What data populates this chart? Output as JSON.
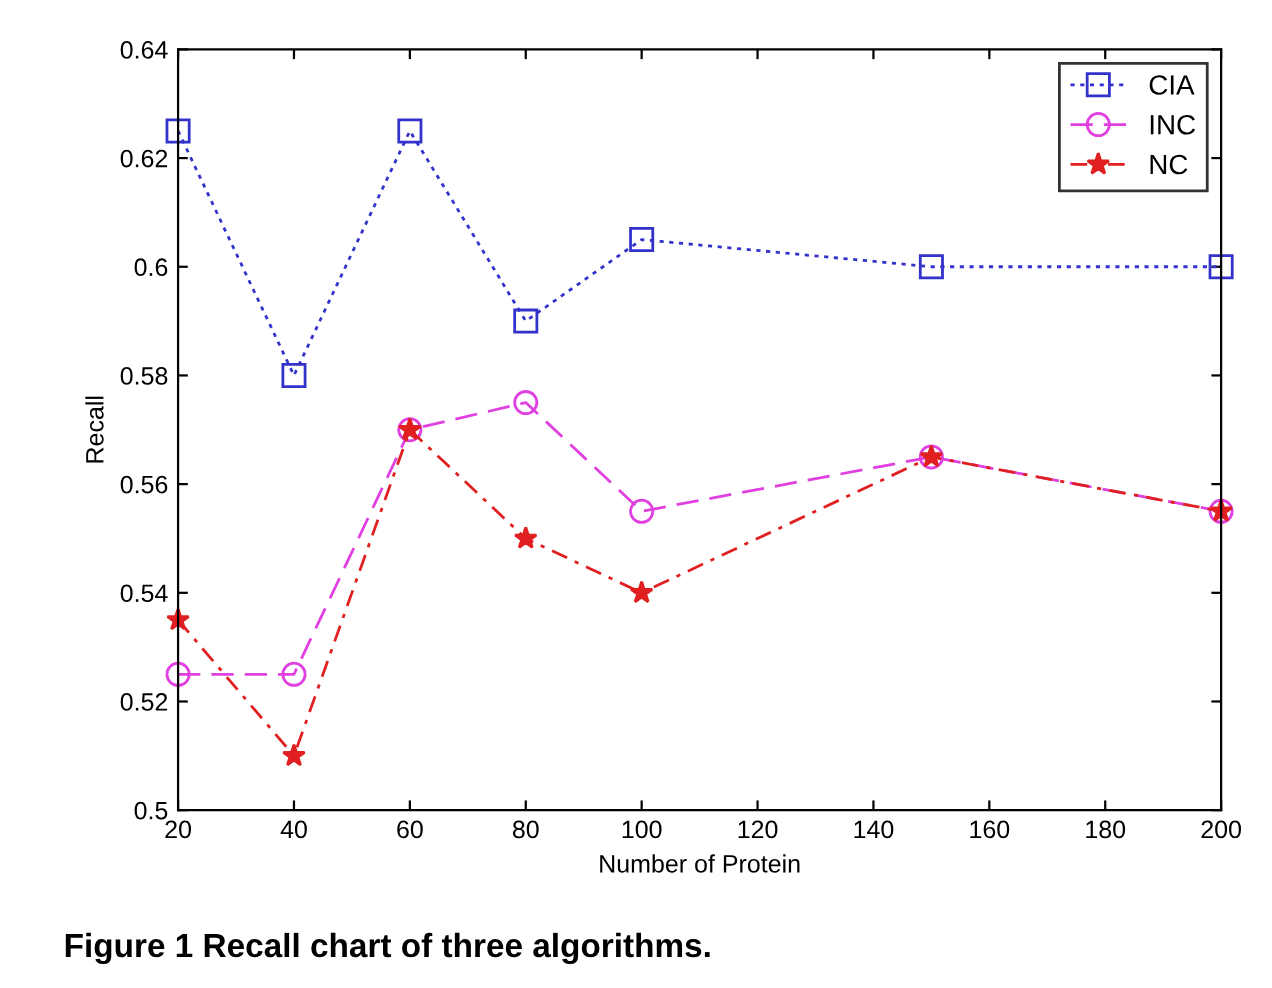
{
  "chart_data": {
    "type": "line",
    "xlabel": "Number of Protein",
    "ylabel": "Recall",
    "annotations": [
      "Figure 1 Recall chart of three algorithms."
    ],
    "x": [
      20,
      40,
      60,
      80,
      100,
      150,
      200
    ],
    "series": [
      {
        "name": "CIA",
        "color": "#3333cc",
        "marker": "square",
        "line_style": "dotted",
        "values": [
          0.625,
          0.58,
          0.625,
          0.59,
          0.605,
          0.6,
          0.6
        ]
      },
      {
        "name": "INC",
        "color": "#e040e0",
        "marker": "circle",
        "line_style": "dashed",
        "values": [
          0.525,
          0.525,
          0.57,
          0.575,
          0.555,
          0.565,
          0.555
        ]
      },
      {
        "name": "NC",
        "color": "#e02020",
        "marker": "star",
        "line_style": "dashdot",
        "values": [
          0.535,
          0.51,
          0.57,
          0.55,
          0.54,
          0.565,
          0.555
        ]
      }
    ],
    "xlim": [
      20,
      200
    ],
    "xticks": [
      20,
      40,
      60,
      80,
      100,
      120,
      140,
      160,
      180,
      200
    ],
    "ylim": [
      0.5,
      0.64
    ],
    "yticks": [
      0.5,
      0.52,
      0.54,
      0.56,
      0.58,
      0.6,
      0.62,
      0.64
    ],
    "grid": false,
    "legend": "top right"
  }
}
